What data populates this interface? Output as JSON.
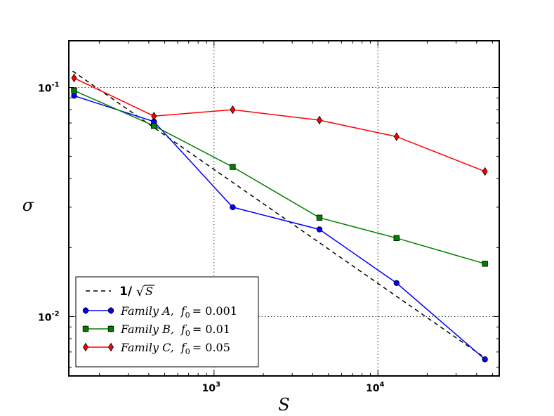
{
  "chart_data": {
    "type": "line",
    "xscale": "log",
    "yscale": "log",
    "xlabel": "S",
    "ylabel": "σ",
    "xlim": [
      130,
      55000
    ],
    "ylim": [
      0.0055,
      0.16
    ],
    "grid": true,
    "x_ticks": [
      {
        "value": 1000,
        "base": "10",
        "exp": "3"
      },
      {
        "value": 10000,
        "base": "10",
        "exp": "4"
      }
    ],
    "y_ticks": [
      {
        "value": 0.1,
        "base": "10",
        "exp": "-1"
      },
      {
        "value": 0.01,
        "base": "10",
        "exp": "-2"
      }
    ],
    "reference": {
      "label_main": "1/",
      "label_sqrt": "S",
      "x": [
        137,
        45000
      ],
      "y": [
        0.118,
        0.0066
      ],
      "color": "#000000"
    },
    "series": [
      {
        "name": "Family A",
        "param": "f",
        "param_sub": "0",
        "param_value": "= 0.001",
        "color": "#0000ff",
        "marker": "circle",
        "x": [
          140,
          430,
          1300,
          4400,
          13000,
          45000
        ],
        "y": [
          0.092,
          0.071,
          0.03,
          0.024,
          0.014,
          0.0065
        ]
      },
      {
        "name": "Family B",
        "param": "f",
        "param_sub": "0",
        "param_value": "= 0.01",
        "color": "#008000",
        "marker": "square",
        "x": [
          140,
          430,
          1300,
          4400,
          13000,
          45000
        ],
        "y": [
          0.097,
          0.068,
          0.045,
          0.027,
          0.022,
          0.017
        ]
      },
      {
        "name": "Family C",
        "param": "f",
        "param_sub": "0",
        "param_value": "= 0.05",
        "color": "#ff0000",
        "marker": "diamond",
        "x": [
          140,
          430,
          1300,
          4400,
          13000,
          45000
        ],
        "y": [
          0.11,
          0.075,
          0.08,
          0.072,
          0.061,
          0.043
        ]
      }
    ],
    "legend_position": "lower-left"
  }
}
